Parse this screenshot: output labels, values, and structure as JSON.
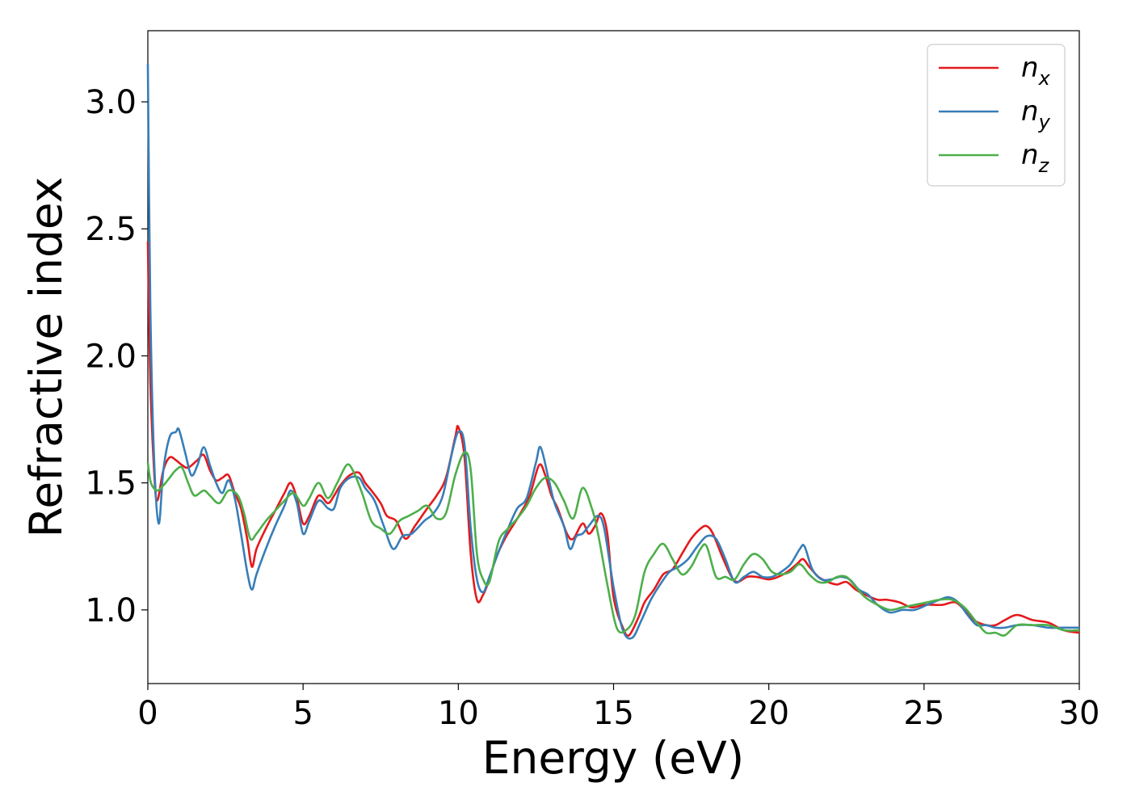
{
  "chart_data": {
    "type": "line",
    "xlabel": "Energy (eV)",
    "ylabel": "Refractive index",
    "xlim": [
      0,
      30
    ],
    "ylim": [
      0.71,
      3.28
    ],
    "xticks": [
      0,
      5,
      10,
      15,
      20,
      25,
      30
    ],
    "xtick_labels": [
      "0",
      "5",
      "10",
      "15",
      "20",
      "25",
      "30"
    ],
    "yticks": [
      1.0,
      1.5,
      2.0,
      2.5,
      3.0
    ],
    "ytick_labels": [
      "1.0",
      "1.5",
      "2.0",
      "2.5",
      "3.0"
    ],
    "grid": false,
    "legend_position": "top-right",
    "series": [
      {
        "name": "n",
        "subscript": "x",
        "color": "#e41a1c",
        "x": [
          0,
          0.08,
          0.2,
          0.3,
          0.5,
          0.7,
          0.9,
          1.1,
          1.3,
          1.6,
          1.8,
          2.0,
          2.2,
          2.4,
          2.6,
          2.8,
          3.0,
          3.2,
          3.35,
          3.5,
          3.8,
          4.1,
          4.4,
          4.6,
          4.8,
          5.0,
          5.2,
          5.5,
          5.8,
          6.0,
          6.2,
          6.5,
          6.8,
          7.0,
          7.2,
          7.5,
          7.7,
          8.0,
          8.3,
          8.6,
          9.0,
          9.3,
          9.6,
          9.9,
          10.0,
          10.2,
          10.4,
          10.6,
          10.8,
          11.0,
          11.2,
          11.5,
          11.8,
          12.0,
          12.3,
          12.6,
          12.8,
          13.0,
          13.2,
          13.5,
          13.7,
          14.0,
          14.2,
          14.4,
          14.6,
          14.8,
          15.0,
          15.3,
          15.5,
          15.8,
          16.0,
          16.3,
          16.6,
          16.9,
          17.2,
          17.5,
          17.8,
          18.0,
          18.2,
          18.5,
          18.8,
          19.0,
          19.3,
          19.6,
          20.0,
          20.3,
          20.6,
          20.9,
          21.1,
          21.3,
          21.6,
          21.9,
          22.2,
          22.5,
          22.8,
          23.1,
          23.5,
          23.8,
          24.2,
          24.6,
          25.0,
          25.3,
          25.6,
          26.0,
          26.3,
          26.6,
          27.0,
          27.3,
          27.6,
          28.0,
          28.5,
          29.0,
          29.5,
          30.0
        ],
        "values": [
          2.45,
          1.9,
          1.55,
          1.43,
          1.55,
          1.6,
          1.59,
          1.57,
          1.56,
          1.59,
          1.61,
          1.55,
          1.51,
          1.52,
          1.53,
          1.46,
          1.4,
          1.28,
          1.17,
          1.24,
          1.32,
          1.39,
          1.46,
          1.5,
          1.44,
          1.34,
          1.37,
          1.45,
          1.42,
          1.45,
          1.49,
          1.53,
          1.54,
          1.5,
          1.47,
          1.42,
          1.37,
          1.35,
          1.28,
          1.33,
          1.4,
          1.45,
          1.52,
          1.68,
          1.72,
          1.6,
          1.22,
          1.04,
          1.06,
          1.12,
          1.2,
          1.28,
          1.34,
          1.38,
          1.45,
          1.57,
          1.53,
          1.45,
          1.4,
          1.3,
          1.28,
          1.34,
          1.3,
          1.33,
          1.38,
          1.3,
          1.05,
          0.93,
          0.9,
          0.97,
          1.03,
          1.08,
          1.14,
          1.16,
          1.22,
          1.28,
          1.32,
          1.33,
          1.3,
          1.21,
          1.13,
          1.11,
          1.13,
          1.13,
          1.12,
          1.13,
          1.15,
          1.18,
          1.2,
          1.17,
          1.13,
          1.11,
          1.1,
          1.11,
          1.08,
          1.06,
          1.04,
          1.04,
          1.03,
          1.01,
          1.02,
          1.02,
          1.02,
          1.03,
          1.0,
          0.96,
          0.94,
          0.94,
          0.96,
          0.98,
          0.96,
          0.95,
          0.92,
          0.91
        ]
      },
      {
        "name": "n",
        "subscript": "y",
        "color": "#377eb8",
        "x": [
          0,
          0.08,
          0.2,
          0.35,
          0.5,
          0.7,
          0.9,
          1.0,
          1.2,
          1.4,
          1.6,
          1.8,
          2.0,
          2.2,
          2.4,
          2.6,
          2.8,
          3.0,
          3.2,
          3.35,
          3.5,
          3.8,
          4.1,
          4.4,
          4.6,
          4.8,
          5.0,
          5.2,
          5.5,
          5.8,
          6.0,
          6.2,
          6.5,
          6.8,
          7.0,
          7.3,
          7.6,
          7.9,
          8.2,
          8.5,
          8.9,
          9.2,
          9.5,
          9.8,
          10.0,
          10.2,
          10.4,
          10.6,
          10.8,
          11.0,
          11.3,
          11.6,
          11.9,
          12.2,
          12.5,
          12.65,
          12.9,
          13.1,
          13.4,
          13.6,
          13.8,
          14.0,
          14.2,
          14.5,
          14.7,
          15.0,
          15.3,
          15.6,
          15.9,
          16.2,
          16.5,
          16.8,
          17.1,
          17.4,
          17.7,
          18.0,
          18.3,
          18.6,
          18.9,
          19.2,
          19.5,
          19.8,
          20.1,
          20.4,
          20.7,
          21.0,
          21.15,
          21.4,
          21.7,
          22.0,
          22.3,
          22.6,
          22.9,
          23.2,
          23.5,
          23.9,
          24.3,
          24.7,
          25.1,
          25.5,
          25.8,
          26.1,
          26.4,
          26.7,
          27.0,
          27.3,
          27.6,
          28.0,
          28.5,
          29.0,
          29.5,
          30.0
        ],
        "values": [
          3.15,
          2.2,
          1.6,
          1.34,
          1.55,
          1.68,
          1.7,
          1.71,
          1.62,
          1.53,
          1.57,
          1.64,
          1.57,
          1.5,
          1.46,
          1.51,
          1.44,
          1.3,
          1.15,
          1.08,
          1.14,
          1.24,
          1.33,
          1.41,
          1.47,
          1.42,
          1.3,
          1.35,
          1.43,
          1.4,
          1.4,
          1.48,
          1.52,
          1.52,
          1.48,
          1.43,
          1.33,
          1.24,
          1.29,
          1.3,
          1.35,
          1.38,
          1.45,
          1.62,
          1.7,
          1.65,
          1.32,
          1.12,
          1.07,
          1.13,
          1.23,
          1.32,
          1.4,
          1.44,
          1.58,
          1.64,
          1.52,
          1.42,
          1.33,
          1.24,
          1.29,
          1.3,
          1.33,
          1.37,
          1.32,
          1.09,
          0.92,
          0.89,
          0.96,
          1.04,
          1.1,
          1.15,
          1.17,
          1.2,
          1.25,
          1.29,
          1.28,
          1.2,
          1.11,
          1.13,
          1.15,
          1.13,
          1.13,
          1.15,
          1.18,
          1.24,
          1.25,
          1.16,
          1.12,
          1.12,
          1.13,
          1.12,
          1.08,
          1.06,
          1.02,
          0.99,
          1.0,
          1.0,
          1.02,
          1.04,
          1.05,
          1.03,
          0.98,
          0.94,
          0.94,
          0.93,
          0.93,
          0.94,
          0.94,
          0.93,
          0.93,
          0.93
        ]
      },
      {
        "name": "n",
        "subscript": "z",
        "color": "#4daf4a",
        "x": [
          0,
          0.1,
          0.3,
          0.5,
          0.7,
          0.9,
          1.1,
          1.3,
          1.5,
          1.8,
          2.0,
          2.3,
          2.6,
          2.9,
          3.1,
          3.3,
          3.5,
          3.8,
          4.1,
          4.4,
          4.7,
          5.0,
          5.2,
          5.5,
          5.8,
          6.1,
          6.4,
          6.6,
          6.9,
          7.2,
          7.5,
          7.8,
          8.1,
          8.4,
          8.7,
          9.0,
          9.3,
          9.6,
          9.9,
          10.2,
          10.4,
          10.6,
          10.8,
          11.0,
          11.3,
          11.6,
          11.9,
          12.2,
          12.5,
          12.8,
          13.1,
          13.4,
          13.7,
          14.0,
          14.3,
          14.5,
          14.8,
          15.1,
          15.4,
          15.7,
          16.0,
          16.3,
          16.6,
          16.9,
          17.2,
          17.5,
          17.8,
          18.0,
          18.3,
          18.6,
          18.9,
          19.2,
          19.5,
          19.8,
          20.1,
          20.4,
          20.7,
          21.0,
          21.3,
          21.6,
          21.9,
          22.2,
          22.5,
          22.8,
          23.1,
          23.5,
          23.9,
          24.3,
          24.7,
          25.1,
          25.5,
          25.9,
          26.3,
          26.7,
          27.0,
          27.3,
          27.6,
          28.0,
          28.5,
          29.0,
          29.5,
          30.0
        ],
        "values": [
          1.58,
          1.5,
          1.47,
          1.49,
          1.52,
          1.55,
          1.56,
          1.5,
          1.45,
          1.47,
          1.45,
          1.42,
          1.47,
          1.45,
          1.38,
          1.28,
          1.3,
          1.35,
          1.39,
          1.43,
          1.46,
          1.41,
          1.44,
          1.5,
          1.44,
          1.5,
          1.57,
          1.55,
          1.46,
          1.35,
          1.32,
          1.3,
          1.35,
          1.37,
          1.39,
          1.41,
          1.36,
          1.38,
          1.53,
          1.62,
          1.55,
          1.22,
          1.12,
          1.11,
          1.27,
          1.32,
          1.36,
          1.41,
          1.48,
          1.52,
          1.5,
          1.43,
          1.36,
          1.48,
          1.4,
          1.3,
          1.1,
          0.93,
          0.92,
          0.98,
          1.15,
          1.22,
          1.26,
          1.2,
          1.14,
          1.17,
          1.24,
          1.25,
          1.13,
          1.13,
          1.12,
          1.18,
          1.22,
          1.2,
          1.15,
          1.14,
          1.15,
          1.18,
          1.14,
          1.11,
          1.11,
          1.13,
          1.13,
          1.09,
          1.05,
          1.02,
          1.0,
          1.01,
          1.02,
          1.03,
          1.04,
          1.04,
          1.01,
          0.95,
          0.91,
          0.91,
          0.9,
          0.94,
          0.94,
          0.94,
          0.92,
          0.92
        ]
      }
    ]
  }
}
